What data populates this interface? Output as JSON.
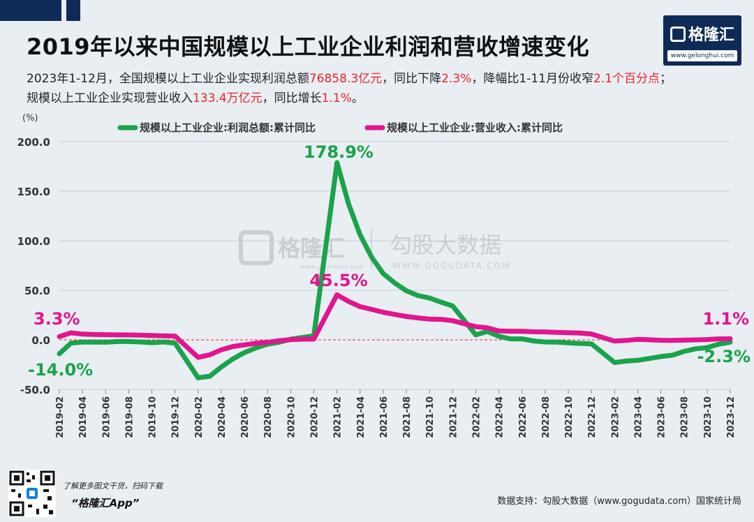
{
  "header": {
    "title": "2019年以来中国规模以上工业企业利润和营收增速变化",
    "line1": {
      "a": "2023年1-12月，全国规模以上工业企业实现利润总额",
      "b": "76858.3亿元",
      "c": "，同比下降",
      "d": "2.3%",
      "e": "，降幅比1-11月份收窄",
      "f": "2.1个百分点",
      "g": "；"
    },
    "line2": {
      "a": "规模以上工业企业实现营业收入",
      "b": "133.4万亿元",
      "c": "，同比增长",
      "d": "1.1%",
      "e": "。"
    }
  },
  "logo": {
    "brand": "格隆汇",
    "url": "www.gelonghui.com"
  },
  "watermark": {
    "left": "格隆汇",
    "left_sub": "www.gelonghui.com",
    "right": "勾股大数据",
    "right_sub": "WWW.GOGUDATA.COM"
  },
  "footer": {
    "promo1": "了解更多图文干货，扫码下载",
    "promo2": "“格隆汇App”",
    "source": "数据支持：勾股大数据（www.gogudata.com）国家统计局"
  },
  "colors": {
    "profit": "#1aa34a",
    "revenue": "#e0168e",
    "accent_red": "#e8262b",
    "navy": "#0d2b56"
  },
  "chart_data": {
    "type": "line",
    "ylabel": "(%)",
    "ylim": [
      -50,
      200
    ],
    "yticks": [
      "200.0",
      "150.0",
      "100.0",
      "50.0",
      "0.0",
      "-50.0"
    ],
    "xtick_labels": [
      "2019-02",
      "2019-04",
      "2019-06",
      "2019-08",
      "2019-10",
      "2019-12",
      "2020-02",
      "2020-04",
      "2020-06",
      "2020-08",
      "2020-10",
      "2020-12",
      "2021-02",
      "2021-04",
      "2021-06",
      "2021-08",
      "2021-10",
      "2021-12",
      "2022-02",
      "2022-04",
      "2022-06",
      "2022-08",
      "2022-10",
      "2022-12",
      "2023-02",
      "2023-04",
      "2023-06",
      "2023-08",
      "2023-10",
      "2023-12"
    ],
    "x": [
      "2019-02",
      "2019-03",
      "2019-04",
      "2019-05",
      "2019-06",
      "2019-07",
      "2019-08",
      "2019-09",
      "2019-10",
      "2019-11",
      "2019-12",
      "2020-02",
      "2020-03",
      "2020-04",
      "2020-05",
      "2020-06",
      "2020-07",
      "2020-08",
      "2020-09",
      "2020-10",
      "2020-11",
      "2020-12",
      "2021-02",
      "2021-03",
      "2021-04",
      "2021-05",
      "2021-06",
      "2021-07",
      "2021-08",
      "2021-09",
      "2021-10",
      "2021-11",
      "2021-12",
      "2022-02",
      "2022-03",
      "2022-04",
      "2022-05",
      "2022-06",
      "2022-07",
      "2022-08",
      "2022-09",
      "2022-10",
      "2022-11",
      "2022-12",
      "2023-02",
      "2023-03",
      "2023-04",
      "2023-05",
      "2023-06",
      "2023-07",
      "2023-08",
      "2023-09",
      "2023-10",
      "2023-11",
      "2023-12"
    ],
    "series": [
      {
        "name": "规模以上工业企业:利润总额:累计同比",
        "color": "#1aa34a",
        "values": [
          -14.0,
          -3.3,
          -2.3,
          -2.3,
          -2.4,
          -1.7,
          -1.7,
          -2.1,
          -2.9,
          -2.1,
          -3.3,
          -38.3,
          -36.7,
          -27.4,
          -19.3,
          -12.8,
          -8.1,
          -4.4,
          -2.4,
          0.7,
          2.4,
          4.1,
          178.9,
          137.3,
          106.0,
          83.4,
          66.9,
          57.3,
          49.5,
          44.7,
          42.2,
          38.0,
          34.3,
          5.0,
          8.5,
          3.5,
          1.0,
          1.0,
          -1.1,
          -2.1,
          -2.3,
          -3.0,
          -3.6,
          -4.0,
          -22.9,
          -21.4,
          -20.6,
          -18.8,
          -16.8,
          -15.5,
          -11.7,
          -9.0,
          -7.8,
          -4.4,
          -2.3
        ]
      },
      {
        "name": "规模以上工业企业:营业收入:累计同比",
        "color": "#e0168e",
        "values": [
          3.3,
          7.1,
          5.8,
          5.5,
          5.2,
          5.0,
          5.0,
          4.7,
          4.4,
          4.1,
          3.8,
          -17.7,
          -15.1,
          -10.0,
          -6.7,
          -5.1,
          -3.4,
          -2.5,
          -0.8,
          0.2,
          0.7,
          0.8,
          45.5,
          38.8,
          33.5,
          30.7,
          27.9,
          25.6,
          23.6,
          22.2,
          20.9,
          20.7,
          19.4,
          13.3,
          12.2,
          9.0,
          8.7,
          8.6,
          8.2,
          8.0,
          7.6,
          7.2,
          6.9,
          5.9,
          -1.3,
          -0.5,
          0.5,
          0.1,
          -0.4,
          -0.5,
          -0.3,
          0.0,
          0.3,
          1.0,
          1.1
        ]
      }
    ],
    "annotations": [
      "178.9%",
      "45.5%",
      "3.3%",
      "-14.0%",
      "1.1%",
      "-2.3%"
    ],
    "grid": true,
    "legend": "top"
  }
}
